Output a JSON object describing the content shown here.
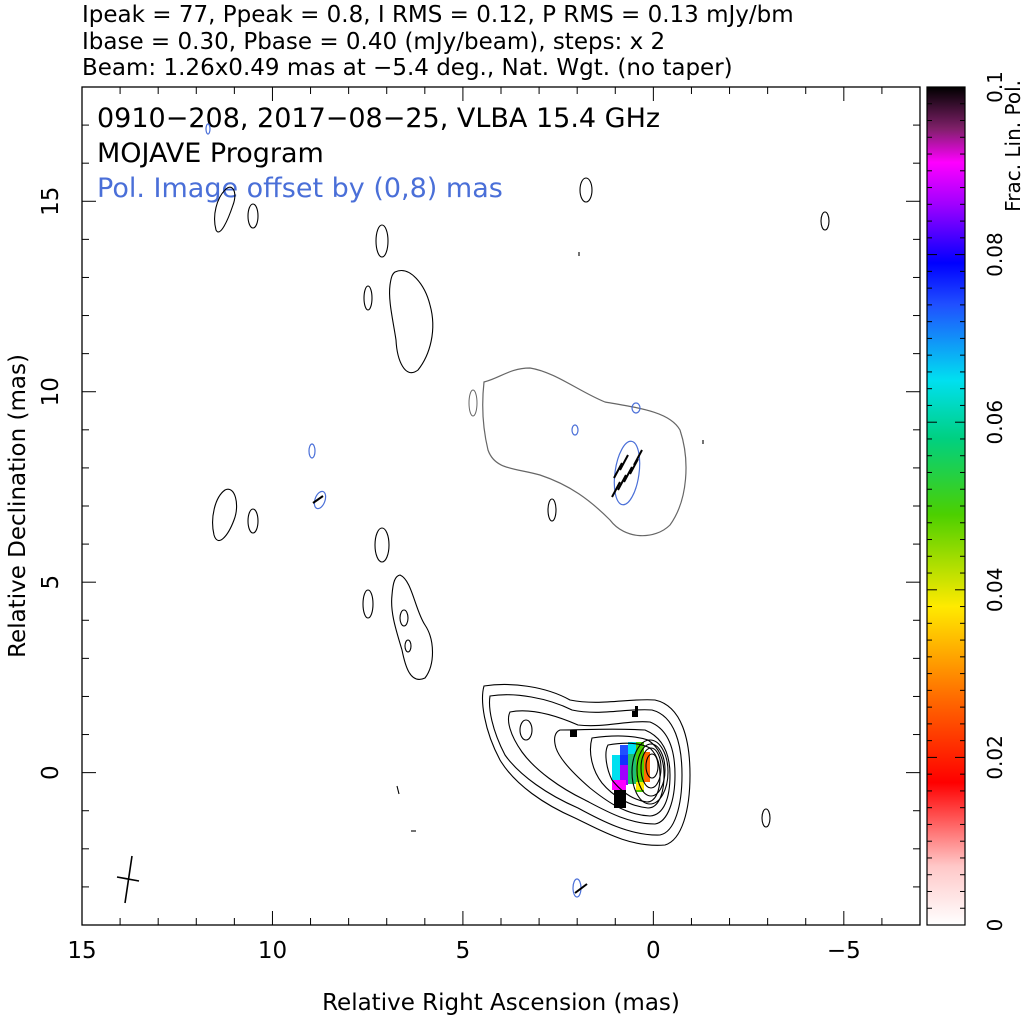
{
  "header": {
    "line1": "Ipeak = 77, Ppeak = 0.8, I RMS = 0.12, P RMS = 0.13 mJy/bm",
    "line2": "Ibase = 0.30, Pbase = 0.40 (mJy/beam), steps: x 2",
    "line3": "Beam: 1.26x0.49 mas at −5.4 deg., Nat. Wgt. (no taper)"
  },
  "chart_data": {
    "type": "contour",
    "title": "0910−208, 2017−08−25, VLBA 15.4 GHz",
    "subtitle": "MOJAVE Program",
    "annotation": "Pol. Image offset by (0,8) mas",
    "xlabel": "Relative Right Ascension (mas)",
    "ylabel": "Relative Declination (mas)",
    "xlim": [
      15,
      -7
    ],
    "ylim": [
      -4,
      18
    ],
    "x_ticks": [
      15,
      10,
      5,
      0,
      -5
    ],
    "x_tick_labels": [
      "15",
      "10",
      "5",
      "0",
      "−5"
    ],
    "y_ticks": [
      0,
      5,
      10,
      15
    ],
    "y_tick_labels": [
      "0",
      "5",
      "10",
      "15"
    ],
    "peak_position": [
      0,
      0
    ],
    "colorbar": {
      "label": "Frac. Lin. Pol.",
      "range": [
        0,
        0.1
      ],
      "ticks": [
        0,
        0.02,
        0.04,
        0.06,
        0.08,
        0.1
      ],
      "tick_labels": [
        "0",
        "0.02",
        "0.04",
        "0.06",
        "0.08",
        "0.1"
      ]
    },
    "colors": {
      "total_intensity_contours": "#000000",
      "polarized_contours": "#4a6fd8",
      "offset_intensity_contour": "#666666",
      "annotation_text": "#4a6fd8"
    }
  }
}
